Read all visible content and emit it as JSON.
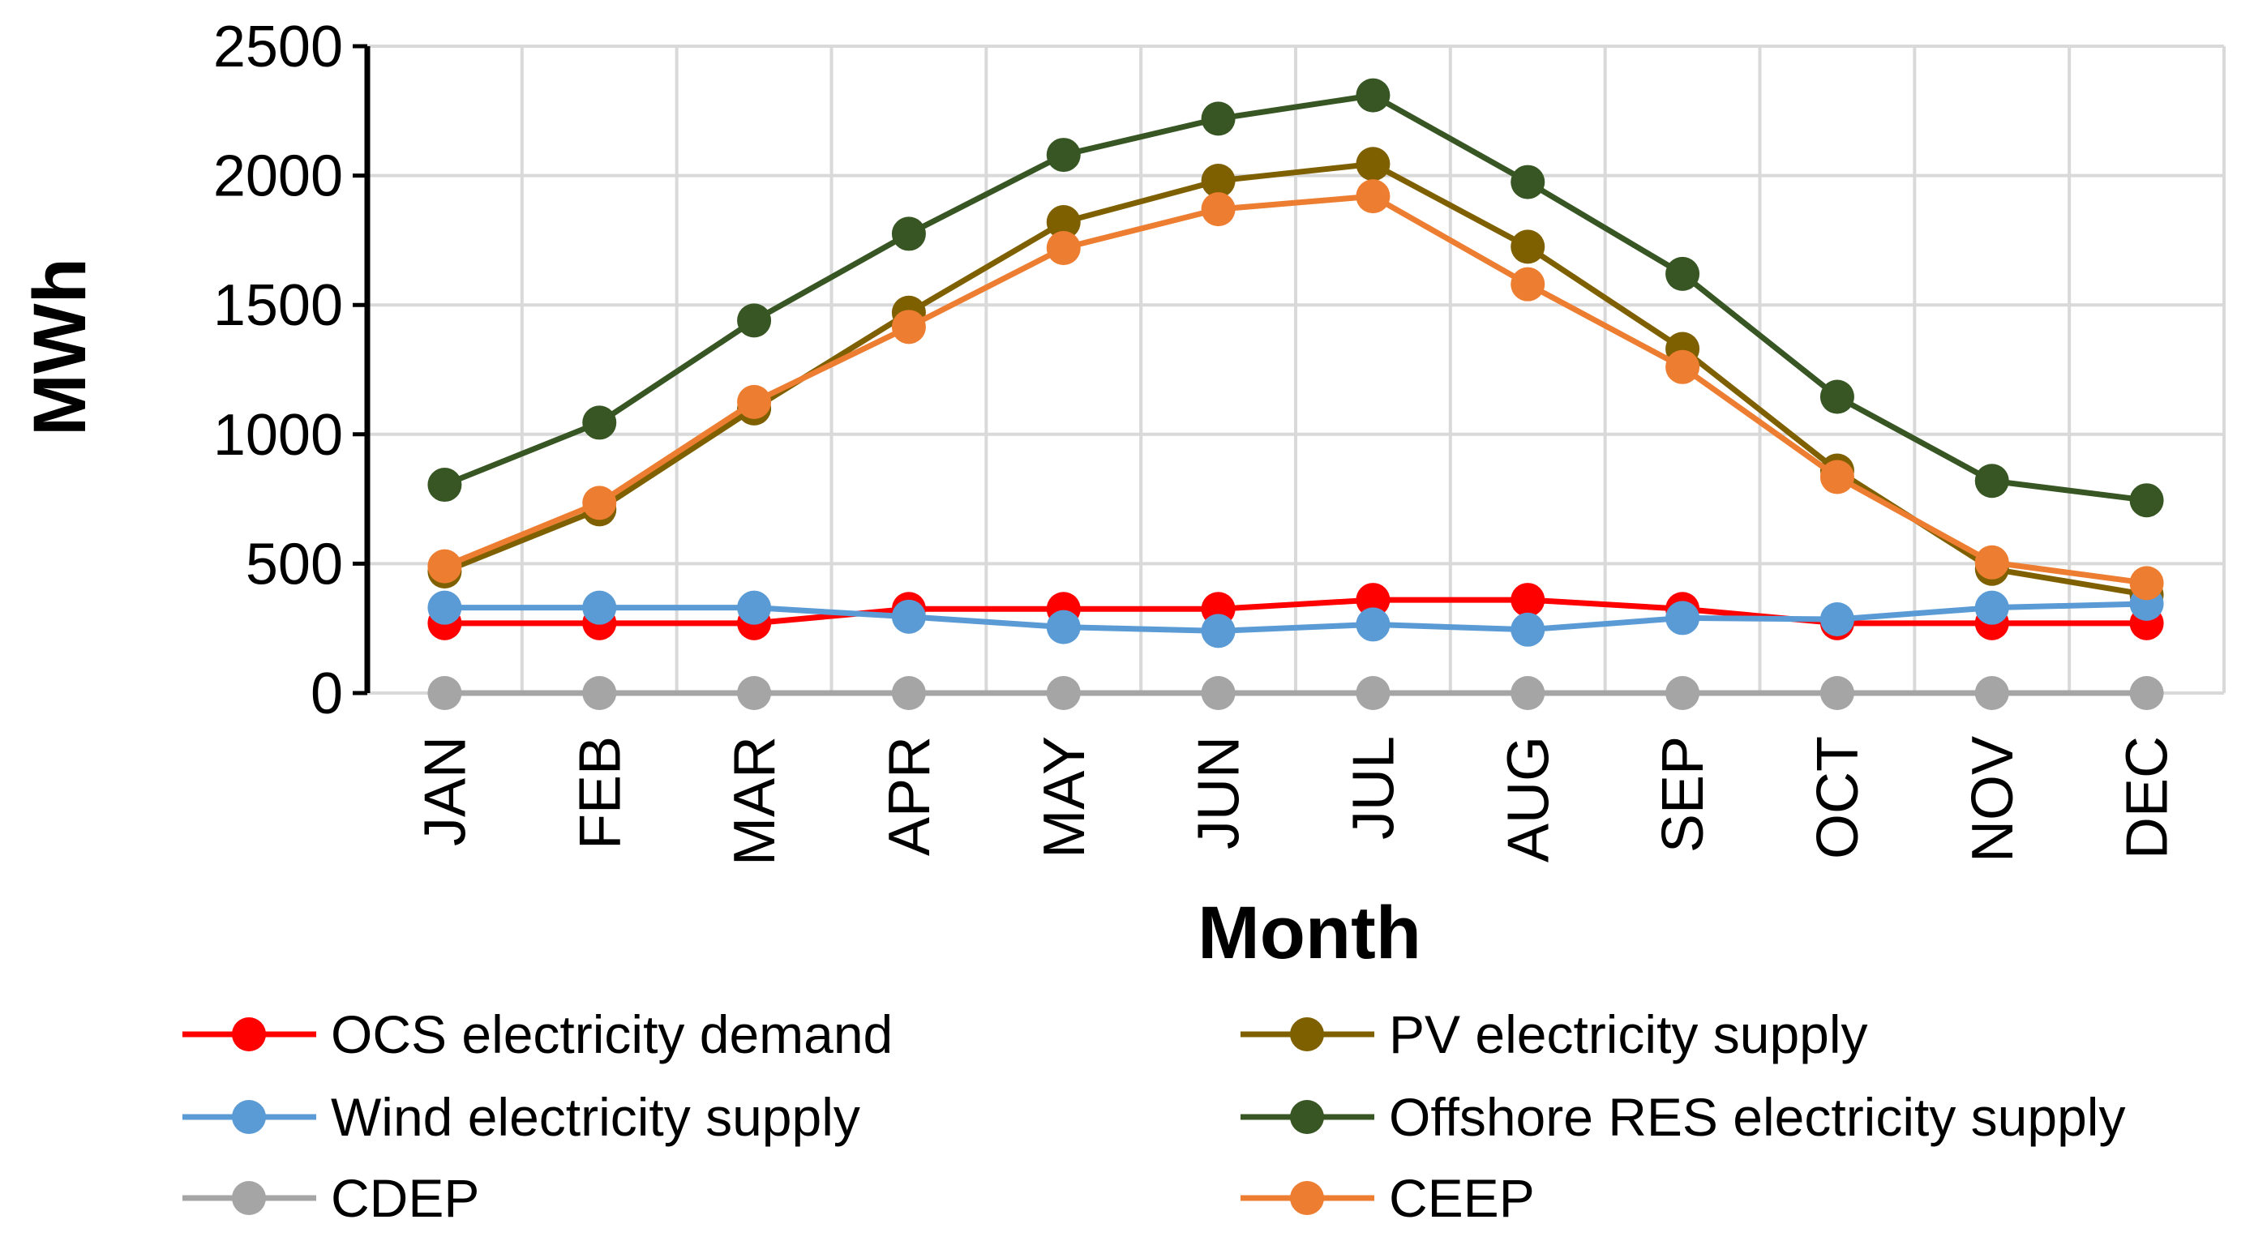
{
  "chart_data": {
    "type": "line",
    "title": "",
    "xlabel": "Month",
    "ylabel": "MWh",
    "ylim": [
      0,
      2500
    ],
    "ytick_step": 500,
    "grid": true,
    "legend_position": "bottom",
    "categories": [
      "JAN",
      "FEB",
      "MAR",
      "APR",
      "MAY",
      "JUN",
      "JUL",
      "AUG",
      "SEP",
      "OCT",
      "NOV",
      "DEC"
    ],
    "series": [
      {
        "name": "OCS electricity demand",
        "color": "#ff0000",
        "values": [
          270,
          270,
          270,
          325,
          325,
          325,
          360,
          360,
          325,
          270,
          270,
          270
        ]
      },
      {
        "name": "PV electricity supply",
        "color": "#7f6000",
        "values": [
          470,
          710,
          1100,
          1470,
          1820,
          1980,
          2045,
          1725,
          1330,
          860,
          480,
          380
        ]
      },
      {
        "name": "Wind electricity supply",
        "color": "#5b9bd5",
        "values": [
          330,
          330,
          330,
          295,
          255,
          240,
          265,
          245,
          290,
          285,
          330,
          345
        ]
      },
      {
        "name": "Offshore RES electricity supply",
        "color": "#375623",
        "values": [
          805,
          1045,
          1440,
          1775,
          2080,
          2220,
          2310,
          1975,
          1620,
          1145,
          820,
          745
        ]
      },
      {
        "name": "CDEP",
        "color": "#a5a5a5",
        "values": [
          0,
          0,
          0,
          0,
          0,
          0,
          0,
          0,
          0,
          0,
          0,
          0
        ]
      },
      {
        "name": "CEEP",
        "color": "#ed7d31",
        "values": [
          490,
          735,
          1125,
          1415,
          1720,
          1870,
          1920,
          1580,
          1260,
          835,
          505,
          425
        ]
      }
    ]
  }
}
